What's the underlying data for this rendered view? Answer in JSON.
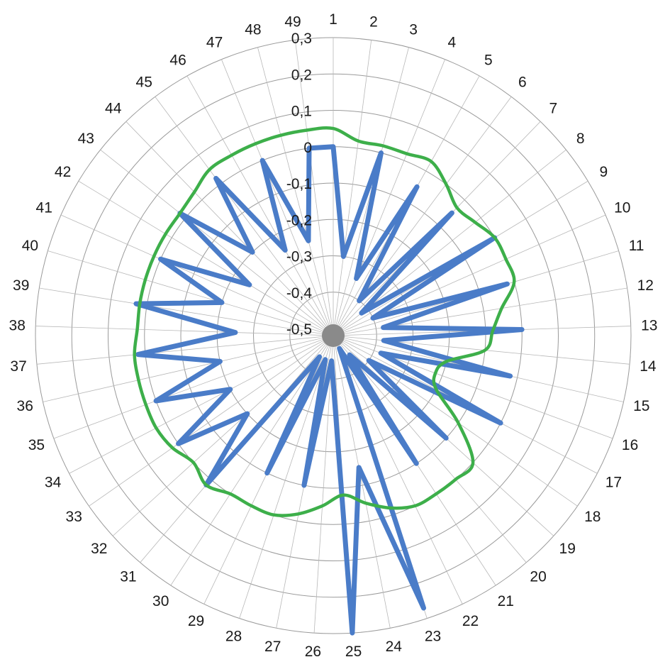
{
  "chart_data": {
    "type": "radar",
    "categories": [
      "1",
      "2",
      "3",
      "4",
      "5",
      "6",
      "7",
      "8",
      "9",
      "10",
      "11",
      "12",
      "13",
      "14",
      "15",
      "16",
      "17",
      "18",
      "19",
      "20",
      "21",
      "22",
      "23",
      "24",
      "25",
      "26",
      "27",
      "28",
      "29",
      "30",
      "31",
      "32",
      "33",
      "34",
      "35",
      "36",
      "37",
      "38",
      "39",
      "40",
      "41",
      "42",
      "43",
      "44",
      "45",
      "46",
      "47",
      "48",
      "49"
    ],
    "radial_ticks": [
      "-0,5",
      "-0,4",
      "-0,3",
      "-0,2",
      "-0,1",
      "0",
      "0,1",
      "0,2",
      "0,3"
    ],
    "rlim": [
      -0.5,
      0.3
    ],
    "grid": true,
    "series": [
      {
        "color": "#4a7cc8",
        "values": [
          0.0,
          -0.3,
          0.0,
          -0.35,
          -0.05,
          -0.4,
          -0.05,
          -0.42,
          0.0,
          -0.4,
          -0.02,
          -0.38,
          0.0,
          -0.38,
          -0.02,
          -0.38,
          0.0,
          -0.4,
          -0.1,
          -0.45,
          -0.1,
          -0.48,
          0.27,
          -0.15,
          0.3,
          -0.45,
          -0.1,
          -0.45,
          -0.1,
          -0.45,
          0.02,
          -0.2,
          0.0,
          -0.2,
          0.0,
          -0.2,
          0.02,
          -0.25,
          0.03,
          -0.2,
          0.0,
          -0.25,
          0.02,
          -0.2,
          0.02,
          -0.25,
          0.0,
          -0.25,
          0.0
        ]
      },
      {
        "color": "#3daf4a",
        "values": [
          0.05,
          0.02,
          0.02,
          0.02,
          0.03,
          0.0,
          -0.03,
          -0.02,
          0.0,
          0.0,
          0.0,
          -0.05,
          -0.08,
          -0.1,
          -0.2,
          -0.22,
          -0.2,
          -0.1,
          0.0,
          0.0,
          0.0,
          0.0,
          -0.02,
          -0.05,
          -0.08,
          -0.05,
          -0.02,
          0.0,
          0.0,
          0.0,
          0.02,
          0.0,
          0.02,
          0.03,
          0.03,
          0.03,
          0.03,
          0.02,
          0.02,
          0.02,
          0.02,
          0.02,
          0.02,
          0.03,
          0.05,
          0.05,
          0.05,
          0.05,
          0.05
        ]
      }
    ]
  }
}
